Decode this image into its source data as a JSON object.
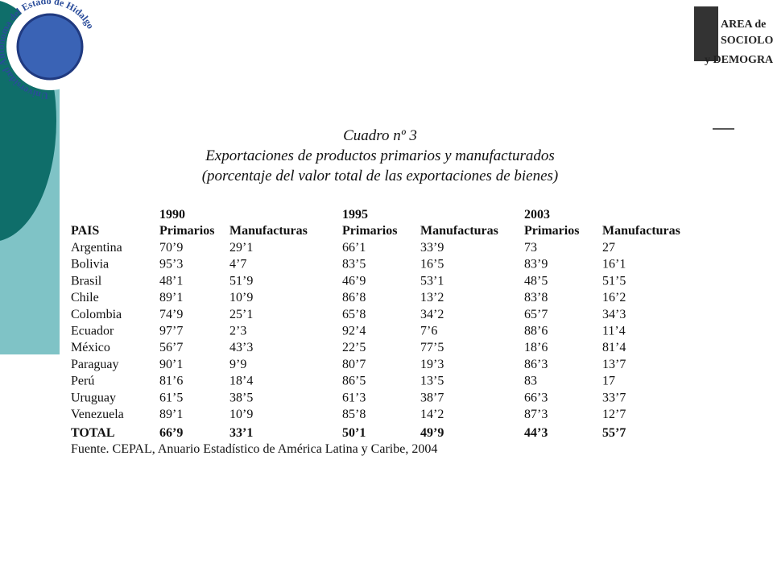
{
  "logos": {
    "university": "Universidad Autónoma del Estado de Hidalgo",
    "department": [
      "AREA de",
      "SOCIOLOGÍA",
      "y DEMOGRAFÍA"
    ]
  },
  "title": [
    "Cuadro nº 3",
    "Exportaciones de productos primarios y manufacturados",
    "(porcentaje del valor total de las exportaciones de bienes)"
  ],
  "table": {
    "years": [
      "1990",
      "1995",
      "2003"
    ],
    "columns": [
      "PAIS",
      "Primarios",
      "Manufacturas",
      "Primarios",
      "Manufacturas",
      "Primarios",
      "Manufacturas"
    ],
    "rows": [
      [
        "Argentina",
        "70’9",
        "29’1",
        "66’1",
        "33’9",
        "73",
        "27"
      ],
      [
        "Bolivia",
        "95’3",
        "4’7",
        "83’5",
        "16’5",
        "83’9",
        "16’1"
      ],
      [
        "Brasil",
        "48’1",
        "51’9",
        "46’9",
        "53’1",
        "48’5",
        "51’5"
      ],
      [
        "Chile",
        "89’1",
        "10’9",
        "86’8",
        "13’2",
        "83’8",
        "16’2"
      ],
      [
        "Colombia",
        "74’9",
        "25’1",
        "65’8",
        "34’2",
        "65’7",
        "34’3"
      ],
      [
        "Ecuador",
        "97’7",
        "2’3",
        "92’4",
        "7’6",
        "88’6",
        "11’4"
      ],
      [
        "México",
        "56’7",
        "43’3",
        "22’5",
        "77’5",
        "18’6",
        "81’4"
      ],
      [
        "Paraguay",
        "90’1",
        "9’9",
        "80’7",
        "19’3",
        "86’3",
        "13’7"
      ],
      [
        "Perú",
        "81’6",
        "18’4",
        "86’5",
        "13’5",
        "83",
        "17"
      ],
      [
        "Uruguay",
        "61’5",
        "38’5",
        "61’3",
        "38’7",
        "66’3",
        "33’7"
      ],
      [
        "Venezuela",
        "89’1",
        "10’9",
        "85’8",
        "14’2",
        "87’3",
        "12’7"
      ]
    ],
    "total": [
      "TOTAL",
      "66’9",
      "33’1",
      "50’1",
      "49’9",
      "44’3",
      "55’7"
    ]
  },
  "source": "Fuente. CEPAL, Anuario Estadístico de América Latina y Caribe, 2004"
}
